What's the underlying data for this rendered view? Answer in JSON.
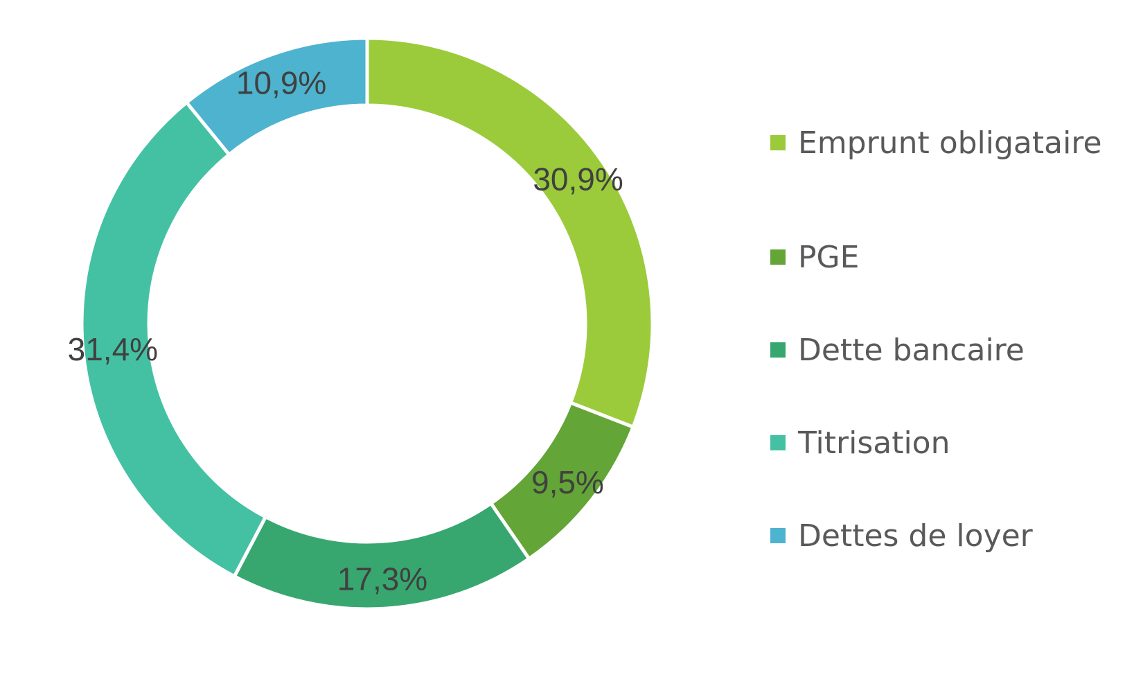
{
  "chart_data": {
    "type": "pie",
    "donut": true,
    "title": "",
    "legend_position": "right",
    "slices": [
      {
        "name": "Emprunt obligataire",
        "value": 30.9,
        "label": "30,9%",
        "color": "#9BCB3B"
      },
      {
        "name": "PGE",
        "value": 9.5,
        "label": "9,5%",
        "color": "#63A537"
      },
      {
        "name": "Dette bancaire",
        "value": 17.3,
        "label": "17,3%",
        "color": "#37A76F"
      },
      {
        "name": "Titrisation",
        "value": 31.4,
        "label": "31,4%",
        "color": "#44C1A3"
      },
      {
        "name": "Dettes de loyer",
        "value": 10.9,
        "label": "10,9%",
        "color": "#4EB3CF"
      }
    ]
  }
}
